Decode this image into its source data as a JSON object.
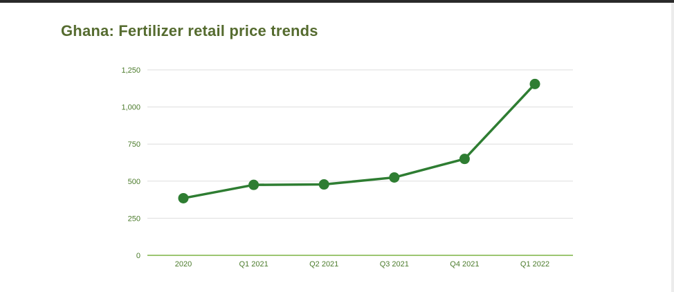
{
  "chart_data": {
    "type": "line",
    "title": "Ghana: Fertilizer retail price trends",
    "categories": [
      "2020",
      "Q1 2021",
      "Q2 2021",
      "Q3 2021",
      "Q4 2021",
      "Q1 2022"
    ],
    "values": [
      385,
      475,
      478,
      525,
      650,
      1155
    ],
    "xlabel": "",
    "ylabel": "",
    "ylim": [
      0,
      1250
    ],
    "yticks": [
      0,
      250,
      500,
      750,
      1000,
      1250
    ],
    "ytick_labels": [
      "0",
      "250",
      "500",
      "750",
      "1,000",
      "1,250"
    ],
    "grid": true,
    "legend": "none",
    "colors": {
      "line": "#2e7d32",
      "title": "#556b2f",
      "grid": "#dddddd",
      "axis": "#7cb342",
      "tick_label": "#4a7a2a"
    }
  }
}
